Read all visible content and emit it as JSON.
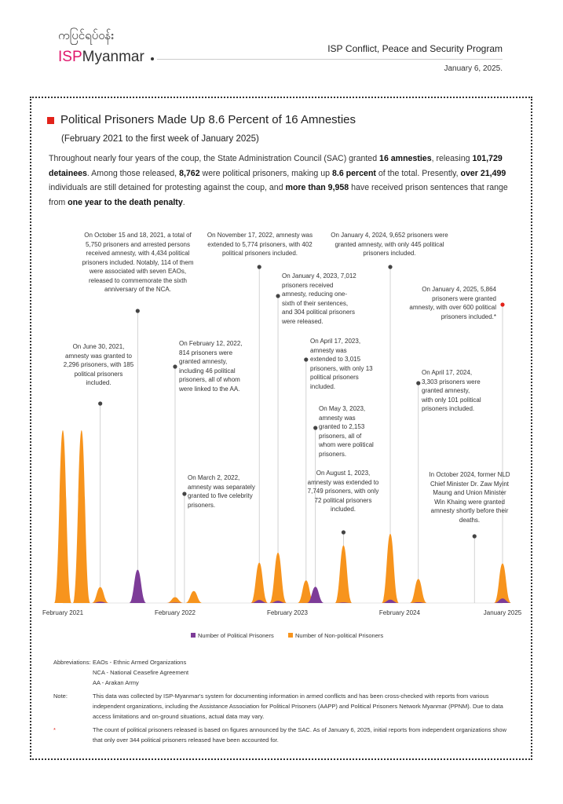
{
  "header": {
    "logo_script": "ကပြင်ရပ်ဝန်း",
    "logo_isp": "ISP",
    "logo_name": "Myanmar",
    "program_prefix": "ISP",
    "program": "Conflict, Peace and Security Program",
    "date": "January 6, 2025."
  },
  "title": "Political Prisoners Made Up 8.6 Percent of 16 Amnesties",
  "subtitle": "(February 2021 to the first week of January 2025)",
  "intro": [
    {
      "text": "Throughout nearly four years of the coup, the State Administration Council (SAC) granted ",
      "bold": false
    },
    {
      "text": "16 amnesties",
      "bold": true
    },
    {
      "text": ", releasing ",
      "bold": false
    },
    {
      "text": "101,729 detainees",
      "bold": true
    },
    {
      "text": ". Among those released, ",
      "bold": false
    },
    {
      "text": "8,762",
      "bold": true
    },
    {
      "text": " were political prisoners, making up ",
      "bold": false
    },
    {
      "text": "8.6 percent",
      "bold": true
    },
    {
      "text": " of the total. Presently, ",
      "bold": false
    },
    {
      "text": "over 21,499",
      "bold": true
    },
    {
      "text": " individuals are still detained for protesting against the coup, and ",
      "bold": false
    },
    {
      "text": "more than 9,958",
      "bold": true
    },
    {
      "text": " have received prison sentences that range from ",
      "bold": false
    },
    {
      "text": "one year to the death penalty",
      "bold": true
    },
    {
      "text": ".",
      "bold": false
    }
  ],
  "chart_data": {
    "type": "area",
    "x": [
      "2021-02",
      "2021-04",
      "2021-06",
      "2021-10",
      "2022-02",
      "2022-04",
      "2022-11",
      "2023-01",
      "2023-04",
      "2023-05",
      "2023-08",
      "2024-01",
      "2024-04",
      "2024-10",
      "2025-01"
    ],
    "xlim": [
      "2021-02",
      "2025-01"
    ],
    "xticks": [
      {
        "value": "2021-02",
        "label": "February 2021"
      },
      {
        "value": "2022-02",
        "label": "February 2022"
      },
      {
        "value": "2023-02",
        "label": "February 2023"
      },
      {
        "value": "2024-02",
        "label": "February 2024"
      },
      {
        "value": "2025-01",
        "label": "January 2025"
      }
    ],
    "series": [
      {
        "name": "Number of Political Prisoners",
        "color": "#7d3c98",
        "values": [
          0,
          0,
          185,
          4434,
          46,
          0,
          402,
          304,
          13,
          2153,
          72,
          445,
          101,
          2,
          600
        ]
      },
      {
        "name": "Number of Non-political Prisoners",
        "color": "#f7941d",
        "values": [
          23000,
          23000,
          2111,
          1316,
          768,
          1600,
          5372,
          6708,
          3002,
          0,
          7677,
          9207,
          3202,
          0,
          5264
        ]
      }
    ],
    "annotations": [
      {
        "x": "2021-06",
        "text": "On June 30, 2021, amnesty was granted to 2,296 prisoners, with 185 political prisoners included."
      },
      {
        "x": "2021-10",
        "text": "On October 15 and 18, 2021, a total of 5,750 prisoners and arrested persons received amnesty, with 4,434 political prisoners included. Notably, 114 of them were associated with seven EAOs, released to commemorate the sixth anniversary of the NCA."
      },
      {
        "x": "2022-02",
        "text": "On February 12, 2022, 814 prisoners were granted amnesty, including 46 political prisoners, all of whom were linked to the AA."
      },
      {
        "x": "2022-03",
        "text": "On March 2, 2022, amnesty was separately granted to five celebrity prisoners."
      },
      {
        "x": "2022-11",
        "text": "On November 17, 2022, amnesty was extended to 5,774 prisoners, with 402 political prisoners included."
      },
      {
        "x": "2023-01",
        "text": "On January 4, 2023, 7,012 prisoners received amnesty, reducing one-sixth of their sentences, and 304 political prisoners were released."
      },
      {
        "x": "2023-04",
        "text": "On April 17, 2023, amnesty was extended to 3,015 prisoners, with only 13 political prisoners included."
      },
      {
        "x": "2023-05",
        "text": "On May 3, 2023, amnesty was granted to 2,153 prisoners, all of whom were political prisoners."
      },
      {
        "x": "2023-08",
        "text": "On August 1, 2023, amnesty was extended to 7,749 prisoners, with only 72 political prisoners included."
      },
      {
        "x": "2024-01",
        "text": "On January 4, 2024, 9,652 prisoners were granted amnesty, with only 445 political prisoners included."
      },
      {
        "x": "2024-04",
        "text": "On April 17, 2024, 3,303 prisoners were granted amnesty, with only 101 political prisoners included."
      },
      {
        "x": "2024-10",
        "text": "In October 2024, former NLD Chief Minister Dr. Zaw Myint Maung and Union Minister Win Khaing were granted amnesty shortly before their deaths."
      },
      {
        "x": "2025-01",
        "text": "On January 4, 2025, 5,864 prisoners were granted amnesty, with over 600 political prisoners included.*"
      }
    ]
  },
  "footnotes": {
    "abbreviations_label": "Abbreviations:",
    "abbreviations": [
      "EAOs - Ethnic Armed Organizations",
      "NCA - National Ceasefire Agreement",
      "AA - Arakan Army"
    ],
    "note_label": "Note:",
    "note": "This data was collected by ISP-Myanmar's system for documenting information in armed conflicts and has been cross-checked with reports from various independent organizations, including the Assistance Association for Political Prisoners (AAPP) and Political Prisoners Network Myanmar (PPNM). Due to data access limitations and on-ground situations, actual data may vary.",
    "asterisk_label": "*",
    "asterisk": "The count of political prisoners released is based on figures announced by the SAC. As of January 6, 2025, initial reports from independent organizations show that only over 344 political prisoners released have been accounted for."
  }
}
